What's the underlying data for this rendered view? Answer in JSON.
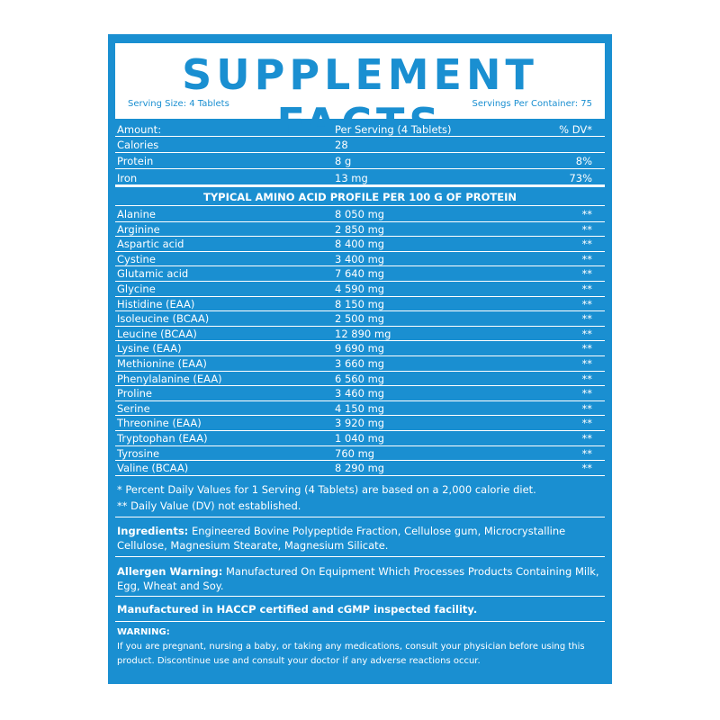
{
  "header": {
    "title": "SUPPLEMENT FACTS",
    "serving_size": "Serving Size: 4 Tablets",
    "servings_per_container": "Servings Per Container: 75"
  },
  "table": {
    "columns": [
      "Amount:",
      "Per Serving (4 Tablets)",
      "% DV*"
    ],
    "rows": [
      {
        "name": "Calories",
        "amount": "28"
      },
      {
        "name": "Protein",
        "amount": "8 g",
        "dv": "8%"
      },
      {
        "name": "Iron",
        "amount": "13 mg",
        "dv": "73%"
      }
    ]
  },
  "amino": {
    "heading": "TYPICAL AMINO ACID PROFILE PER 100 G OF PROTEIN",
    "rows": [
      {
        "name": "Alanine",
        "amount": "8 050 mg",
        "dv": "**"
      },
      {
        "name": "Arginine",
        "amount": "2 850 mg",
        "dv": "**"
      },
      {
        "name": "Aspartic acid",
        "amount": "8 400 mg",
        "dv": "**"
      },
      {
        "name": "Cystine",
        "amount": "3 400 mg",
        "dv": "**"
      },
      {
        "name": "Glutamic acid",
        "amount": "7 640 mg",
        "dv": "**"
      },
      {
        "name": "Glycine",
        "amount": "4 590 mg",
        "dv": "**"
      },
      {
        "name": "Histidine (EAA)",
        "amount": "8 150 mg",
        "dv": "**"
      },
      {
        "name": "Isoleucine (BCAA)",
        "amount": "2 500 mg",
        "dv": "**"
      },
      {
        "name": "Leucine (BCAA)",
        "amount": "12 890 mg",
        "dv": "**"
      },
      {
        "name": "Lysine (EAA)",
        "amount": "9 690 mg",
        "dv": "**"
      },
      {
        "name": "Methionine (EAA)",
        "amount": "3 660 mg",
        "dv": "**"
      },
      {
        "name": "Phenylalanine (EAA)",
        "amount": "6 560 mg",
        "dv": "**"
      },
      {
        "name": "Proline",
        "amount": "3 460 mg",
        "dv": "**"
      },
      {
        "name": "Serine",
        "amount": "4 150 mg",
        "dv": "**"
      },
      {
        "name": "Threonine (EAA)",
        "amount": "3 920 mg",
        "dv": "**"
      },
      {
        "name": "Tryptophan (EAA)",
        "amount": "1 040 mg",
        "dv": "**"
      },
      {
        "name": "Tyrosine",
        "amount": "760 mg",
        "dv": "**"
      },
      {
        "name": "Valine (BCAA)",
        "amount": "8 290 mg",
        "dv": "**"
      }
    ]
  },
  "footnotes": [
    "* Percent Daily Values for 1 Serving (4 Tablets) are based on a 2,000 calorie diet.",
    "** Daily Value (DV) not established."
  ],
  "ingredients": {
    "label": "Ingredients:",
    "text": "Engineered Bovine Polypeptide Fraction, Cellulose gum, Microcrystalline Cellulose, Magnesium Stearate, Magnesium Silicate."
  },
  "allergen": {
    "label": "Allergen Warning:",
    "text": "Manufactured On Equipment Which Processes Products Containing Milk, Egg, Wheat and Soy."
  },
  "manufacturing": "Manufactured in HACCP certified and cGMP inspected facility.",
  "warning": {
    "label": "WARNING:",
    "text": "If you are pregnant, nursing a baby, or taking any medications, consult your physician before using this product. Discontinue use and consult your doctor if any adverse reactions occur."
  }
}
